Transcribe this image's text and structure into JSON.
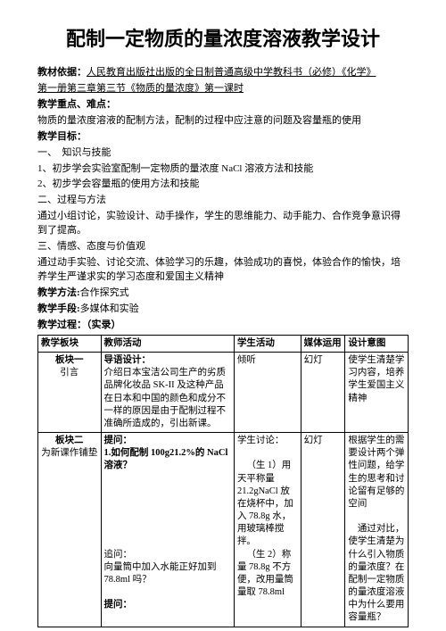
{
  "title": "配制一定物质的量浓度溶液教学设计",
  "basis_label": "教材依据：",
  "basis_text1": "人民教育出版社出版的全日制普通高级中学教科书（必修）《化学》",
  "basis_text2": "第一册第三章第三节《物质的量浓度》第一课时",
  "keypoints_label": "教学重点、难点：",
  "keypoints_text": "物质的量浓度溶液的配制方法，配制的过程中应注意的问题及容量瓶的使用",
  "goals_label": "教学目标：",
  "goal_section1": "一、　知识与技能",
  "goal_item1": "1、初步学会实验室配制一定物质的量浓度 NaCl 溶液方法和技能",
  "goal_item2": "2、初步学会容量瓶的使用方法和技能",
  "goal_section2": "二、过程与方法",
  "goal_process": "通过小组讨论，实验设计、动手操作，学生的思维能力、动手能力、合作竞争意识得到了提高。",
  "goal_section3": "三、情感、态度与价值观",
  "goal_emotion": "通过动手实验、讨论交流、体验学习的乐趣，体验成功的喜悦，体验合作的愉快，培养学生严谨求实的学习态度和爱国主义精神",
  "method_label": "教学方法:",
  "method_text": "合作探究式",
  "means_label": "教学手段:",
  "means_text": "多媒体和实验",
  "process_label": "教学过程：",
  "process_subtitle": "（实录）",
  "table": {
    "headers": [
      "教学板块",
      "教师活动",
      "学生活动",
      "媒体运用",
      "设计意图"
    ],
    "rows": [
      {
        "c1a": "板块一",
        "c1b": "引言",
        "c2_head": "导语设计：",
        "c2_body": "介绍日本宝洁公司生产的劣质品牌化妆品 SK-II 及这种产品在日本和中国的颜色和成分不一样的原因是由于配制过程不准确所造成的，引出新课。",
        "c3": "倾听",
        "c4": "幻灯",
        "c5": "使学生清楚学习内容，培养学生爱国主义精神"
      },
      {
        "c1a": "板块二",
        "c1b": "为新课作铺垫",
        "c2_head": "提问：",
        "c2_q1": "1.如何配制 100g21.2%的 NaCl 溶液？",
        "c2_ask": "追问：",
        "c2_askbody": "向量筒中加入水能正好加到 78.8ml 吗？",
        "c2_ask2": "提问：",
        "c3_head": "学生讨论：",
        "c3_b1": "（生 1）用天平称量 21.2gNaCl 放在烧杯中，加入 78.8g 水，用玻璃棒搅拌。",
        "c3_b2": "（生 2）称量 78.8g 不方便，改用量筒量取 78.8ml",
        "c4": "幻灯",
        "c5a": "根据学生的需要设计两个弹性问题，给学生的思考和讨论留有足够的空间",
        "c5b": "通过对比，使学生清楚为什么引入物质的量浓度？在配制一定物质的量浓度溶液中为什么要用容量瓶？"
      }
    ]
  }
}
